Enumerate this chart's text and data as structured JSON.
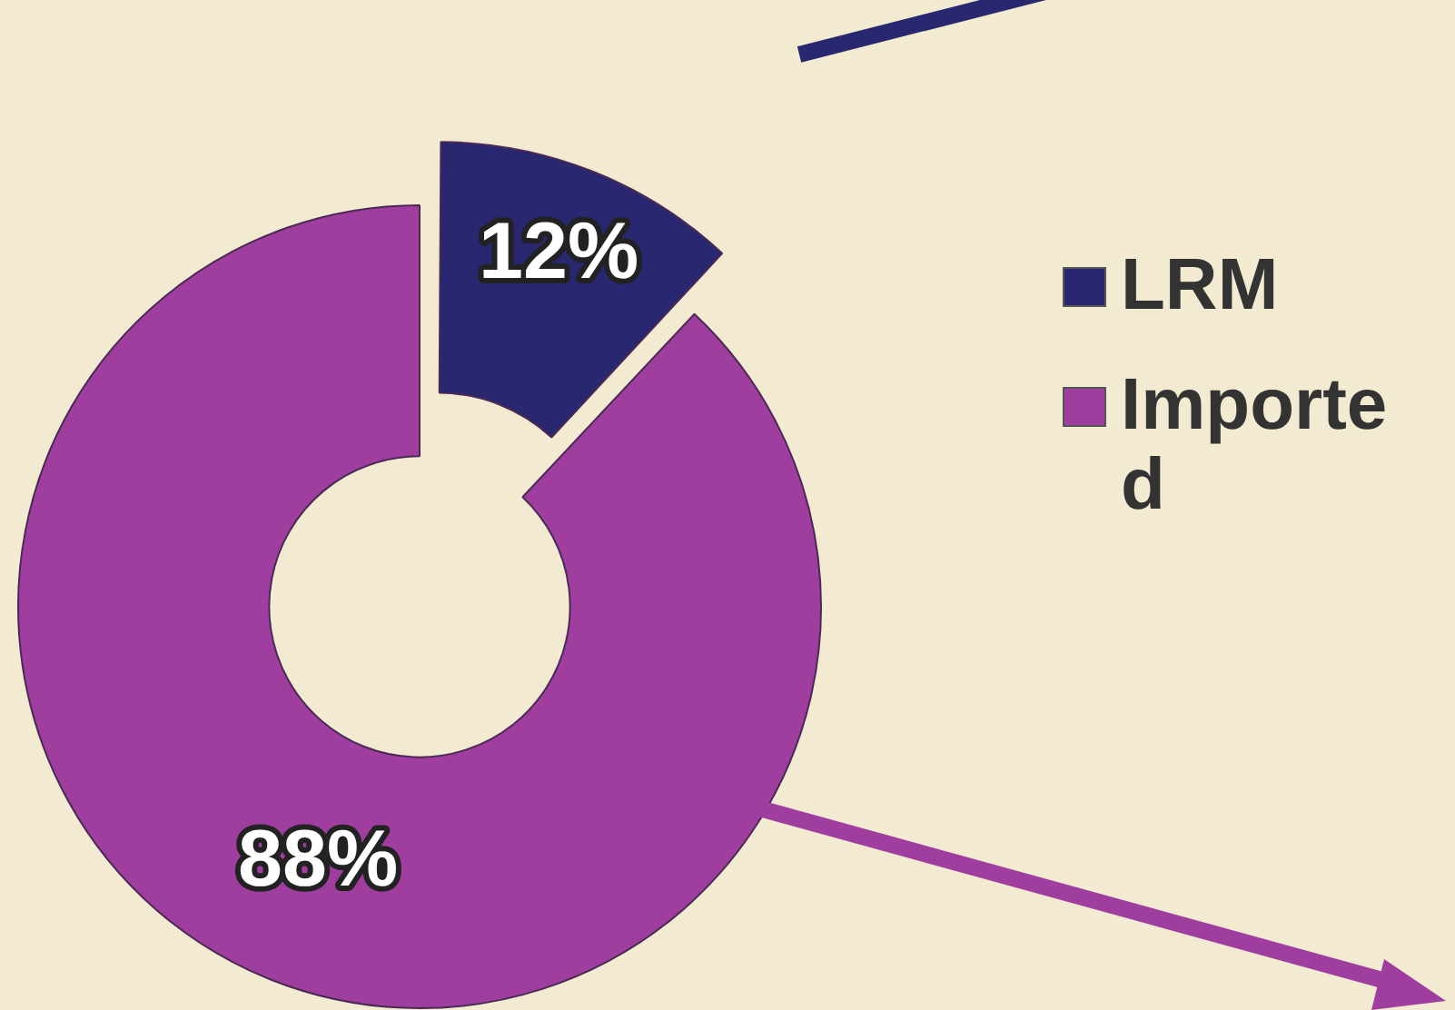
{
  "chart_data": {
    "type": "donut",
    "categories": [
      "LRM",
      "Imported"
    ],
    "values": [
      12,
      88
    ],
    "colors": [
      "#29276f",
      "#a03e9f"
    ],
    "value_labels": [
      "12%",
      "88%"
    ],
    "legend": "right"
  }
}
